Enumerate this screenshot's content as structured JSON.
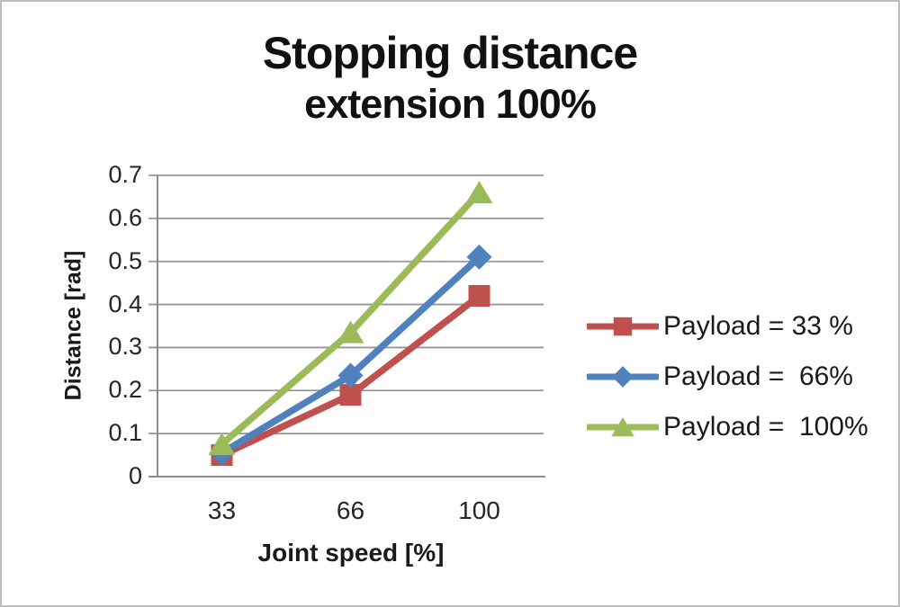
{
  "window": {
    "background": "#ffffff",
    "border_color": "#bdbdbd"
  },
  "chart_data": {
    "type": "line",
    "title": "Stopping distance",
    "subtitle": "extension 100%",
    "xlabel": "Joint speed [%]",
    "ylabel": "Distance [rad]",
    "categories": [
      "33",
      "66",
      "100"
    ],
    "y_ticks": [
      "0",
      "0.1",
      "0.2",
      "0.3",
      "0.4",
      "0.5",
      "0.6",
      "0.7"
    ],
    "ylim": [
      0,
      0.7
    ],
    "grid": true,
    "legend_position": "right",
    "series": [
      {
        "name": "Payload = 33 %",
        "marker": "square",
        "color": "#C0504D",
        "values": [
          0.05,
          0.19,
          0.42
        ]
      },
      {
        "name": "Payload =  66%",
        "marker": "diamond",
        "color": "#4F81BD",
        "values": [
          0.055,
          0.235,
          0.51
        ]
      },
      {
        "name": "Payload =  100%",
        "marker": "triangle",
        "color": "#9BBB59",
        "values": [
          0.075,
          0.335,
          0.66
        ]
      }
    ],
    "axis_color": "#8C8C8C",
    "grid_color": "#969696",
    "tick_text_color": "#262626",
    "title_text_color": "#111111"
  }
}
